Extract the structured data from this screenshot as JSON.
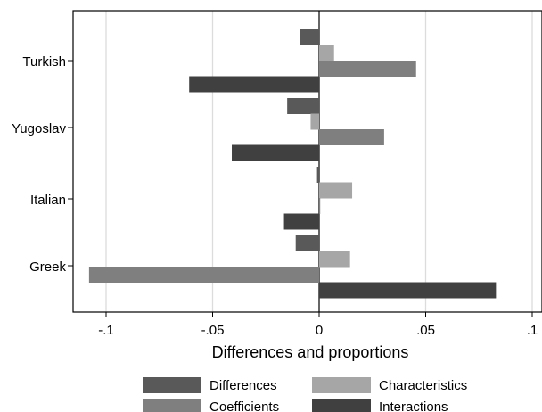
{
  "chart_data": {
    "type": "bar",
    "orientation": "horizontal",
    "categories": [
      "Turkish",
      "Yugoslav",
      "Italian",
      "Greek"
    ],
    "series": [
      {
        "name": "Differences",
        "color": "#595959",
        "values": [
          -0.009,
          -0.015,
          -0.001,
          -0.011
        ]
      },
      {
        "name": "Characteristics",
        "color": "#a6a6a6",
        "values": [
          0.007,
          -0.004,
          0.0155,
          0.0145
        ]
      },
      {
        "name": "Coefficients",
        "color": "#7f7f7f",
        "values": [
          0.0455,
          0.0305,
          0.0005,
          -0.108
        ]
      },
      {
        "name": "Interactions",
        "color": "#404040",
        "values": [
          -0.061,
          -0.041,
          -0.0165,
          0.083
        ]
      }
    ],
    "xlabel": "Differences and proportions",
    "ylabel": "",
    "title": "",
    "xlim": [
      -0.115,
      0.1
    ],
    "xticks": [
      {
        "value": -0.1,
        "label": "-.1"
      },
      {
        "value": -0.05,
        "label": "-.05"
      },
      {
        "value": 0,
        "label": "0"
      },
      {
        "value": 0.05,
        "label": ".05"
      },
      {
        "value": 0.1,
        "label": ".1"
      }
    ],
    "grid": true,
    "legend": {
      "position": "bottom",
      "columns": 2,
      "order": [
        "Differences",
        "Characteristics",
        "Coefficients",
        "Interactions"
      ]
    }
  }
}
